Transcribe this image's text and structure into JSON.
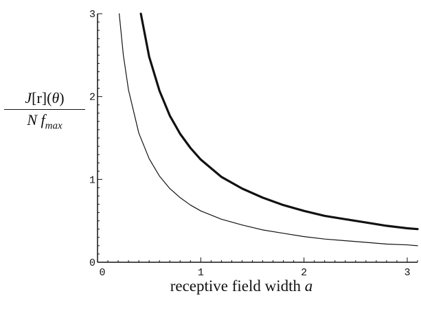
{
  "chart_data": {
    "type": "line",
    "xlabel_text": "receptive field width",
    "xlabel_var": "a",
    "ylabel": {
      "numerator": "J[r](θ)",
      "denominator": "N f_max"
    },
    "xlim": [
      0,
      3.1
    ],
    "ylim": [
      0,
      3.0
    ],
    "x_ticks": [
      0,
      1,
      2,
      3
    ],
    "y_ticks": [
      0,
      1,
      2,
      3
    ],
    "x_tick_labels": [
      "0",
      "1",
      "2",
      "3"
    ],
    "y_tick_labels": [
      "0",
      "1",
      "2",
      "3"
    ],
    "grid": false,
    "series": [
      {
        "style": "thick",
        "color": "#111111",
        "x": [
          0.42,
          0.5,
          0.6,
          0.7,
          0.8,
          0.9,
          1.0,
          1.2,
          1.4,
          1.6,
          1.8,
          2.0,
          2.2,
          2.4,
          2.6,
          2.8,
          3.0,
          3.1
        ],
        "y": [
          3.0,
          2.48,
          2.07,
          1.77,
          1.55,
          1.38,
          1.24,
          1.03,
          0.89,
          0.78,
          0.69,
          0.62,
          0.56,
          0.52,
          0.48,
          0.44,
          0.41,
          0.4
        ]
      },
      {
        "style": "thin",
        "color": "#111111",
        "x": [
          0.21,
          0.25,
          0.3,
          0.4,
          0.5,
          0.6,
          0.7,
          0.8,
          0.9,
          1.0,
          1.2,
          1.4,
          1.6,
          1.8,
          2.0,
          2.2,
          2.4,
          2.6,
          2.8,
          3.0,
          3.1
        ],
        "y": [
          3.0,
          2.5,
          2.08,
          1.56,
          1.25,
          1.04,
          0.89,
          0.78,
          0.69,
          0.62,
          0.52,
          0.45,
          0.39,
          0.35,
          0.31,
          0.28,
          0.26,
          0.24,
          0.22,
          0.21,
          0.2
        ]
      }
    ]
  }
}
